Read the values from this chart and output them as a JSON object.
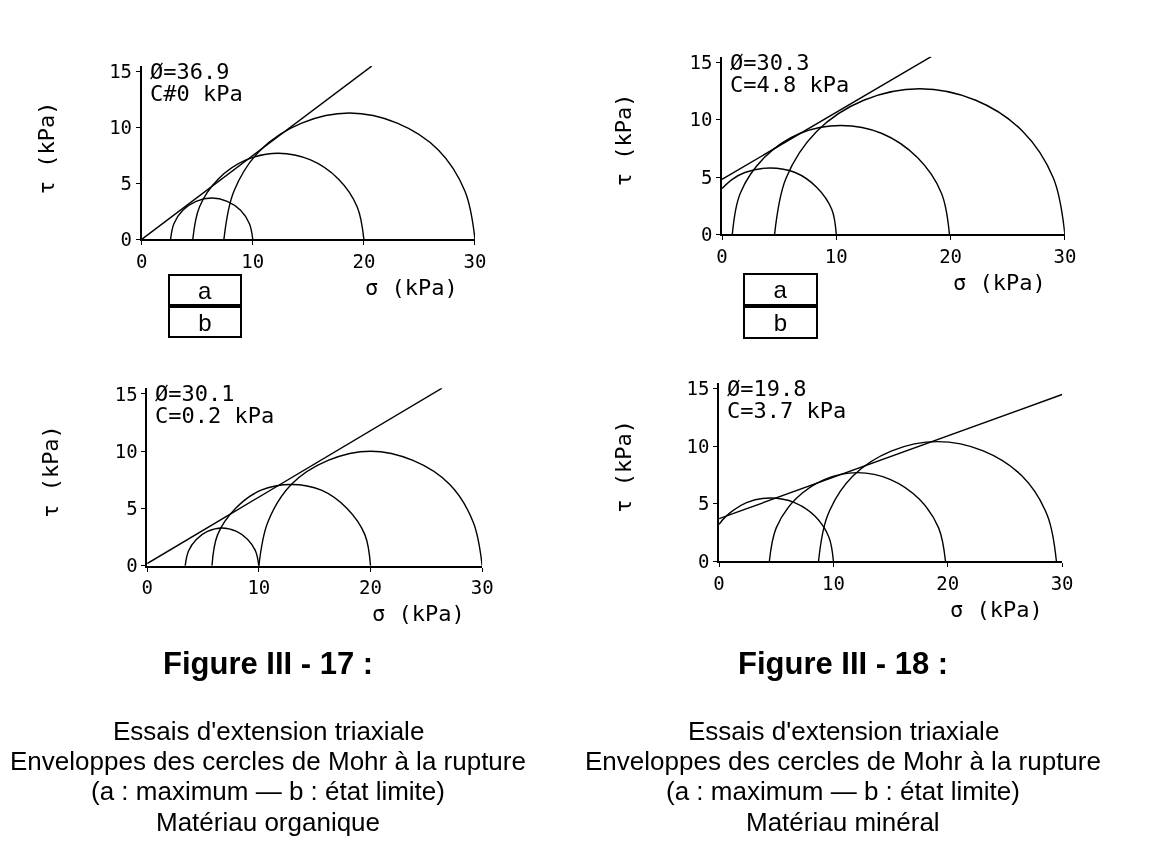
{
  "chart_data": [
    {
      "type": "line",
      "xlabel": "σ (kPa)",
      "ylabel": "τ (kPa)",
      "annotations": [
        "Ø=36.9",
        "C#0 kPa"
      ],
      "xlim": [
        0,
        30
      ],
      "xticks": [
        0,
        10,
        20,
        30
      ],
      "ylim": [
        0,
        15.5
      ],
      "yticks": [
        0,
        5,
        10,
        15
      ],
      "series": [
        {
          "color": "#000000",
          "x": [
            2.6,
            2.9,
            3.7,
            4.9,
            6.3,
            7.7,
            8.9,
            9.7,
            10.0
          ],
          "values": [
            0,
            1.4,
            2.6,
            3.4,
            3.7,
            3.4,
            2.6,
            1.4,
            0
          ]
        },
        {
          "color": "#000000",
          "x": [
            4.6,
            5.2,
            6.9,
            9.4,
            12.3,
            15.2,
            17.7,
            19.4,
            20.0
          ],
          "values": [
            0,
            2.9,
            5.4,
            7.1,
            7.7,
            7.1,
            5.4,
            2.9,
            0
          ]
        },
        {
          "color": "#000000",
          "x": [
            7.4,
            8.3,
            10.7,
            14.4,
            18.7,
            23.0,
            26.7,
            29.1,
            30.0
          ],
          "values": [
            0,
            4.3,
            8.0,
            10.4,
            11.3,
            10.4,
            8.0,
            4.3,
            0
          ]
        },
        {
          "color": "#000000",
          "x": [
            0,
            20.7
          ],
          "values": [
            0,
            15.5
          ]
        }
      ]
    },
    {
      "type": "other",
      "annotations": [
        "a",
        "b"
      ]
    },
    {
      "type": "line",
      "xlabel": "σ (kPa)",
      "ylabel": "τ (kPa)",
      "annotations": [
        "Ø=30.1",
        "C=0.2 kPa"
      ],
      "xlim": [
        0,
        30
      ],
      "xticks": [
        0,
        10,
        20,
        30
      ],
      "ylim": [
        0,
        15.5
      ],
      "yticks": [
        0,
        5,
        10,
        15
      ],
      "series": [
        {
          "color": "#000000",
          "x": [
            3.4,
            3.7,
            4.4,
            5.4,
            6.7,
            8.0,
            9.0,
            9.7,
            10.0
          ],
          "values": [
            0,
            1.3,
            2.3,
            3.0,
            3.3,
            3.0,
            2.3,
            1.3,
            0
          ]
        },
        {
          "color": "#000000",
          "x": [
            5.8,
            6.3,
            7.9,
            10.2,
            12.9,
            15.6,
            17.9,
            19.5,
            20.0
          ],
          "values": [
            0,
            2.7,
            5.0,
            6.6,
            7.1,
            6.6,
            5.0,
            2.7,
            0
          ]
        },
        {
          "color": "#000000",
          "x": [
            10.0,
            10.8,
            12.9,
            16.2,
            20.0,
            23.8,
            27.1,
            29.2,
            30.0
          ],
          "values": [
            0,
            3.8,
            7.1,
            9.2,
            10.0,
            9.2,
            7.1,
            3.8,
            0
          ]
        },
        {
          "color": "#000000",
          "x": [
            0,
            26.4
          ],
          "values": [
            0.2,
            15.5
          ]
        }
      ]
    },
    {
      "type": "other",
      "title": "Figure III - 17 :",
      "annotations": [
        "Essais d'extension triaxiale",
        "Enveloppes des cercles de Mohr à la rupture",
        "(a : maximum — b : état limite)",
        "Matériau organique"
      ]
    },
    {
      "type": "line",
      "xlabel": "σ (kPa)",
      "ylabel": "τ (kPa)",
      "annotations": [
        "Ø=30.3",
        "C=4.8 kPa"
      ],
      "xlim": [
        0,
        30
      ],
      "xticks": [
        0,
        10,
        20,
        30
      ],
      "ylim": [
        0,
        15.5
      ],
      "yticks": [
        0,
        5,
        10,
        15
      ],
      "series": [
        {
          "color": "#000000",
          "x": [
            0,
            0.9,
            2.0,
            4.2,
            6.4,
            8.3,
            9.6,
            10.0
          ],
          "values": [
            4.0,
            4.8,
            5.4,
            5.8,
            5.4,
            4.1,
            2.2,
            0
          ]
        },
        {
          "color": "#000000",
          "x": [
            0.9,
            1.6,
            3.7,
            6.8,
            10.4,
            14.0,
            17.1,
            19.2,
            19.9
          ],
          "values": [
            0,
            3.6,
            6.7,
            8.8,
            9.5,
            8.8,
            6.7,
            3.6,
            0
          ]
        },
        {
          "color": "#000000",
          "x": [
            4.6,
            5.6,
            8.3,
            12.4,
            17.3,
            22.2,
            26.3,
            29.0,
            30.0
          ],
          "values": [
            0,
            4.9,
            9.0,
            11.7,
            12.7,
            11.7,
            9.0,
            4.9,
            0
          ]
        },
        {
          "color": "#000000",
          "x": [
            0,
            18.3
          ],
          "values": [
            4.8,
            15.5
          ]
        }
      ]
    },
    {
      "type": "other",
      "annotations": [
        "a",
        "b"
      ]
    },
    {
      "type": "line",
      "xlabel": "σ (kPa)",
      "ylabel": "τ (kPa)",
      "annotations": [
        "Ø=19.8",
        "C=3.7 kPa"
      ],
      "xlim": [
        0,
        30
      ],
      "xticks": [
        0,
        10,
        20,
        30
      ],
      "ylim": [
        0,
        15.5
      ],
      "yticks": [
        0,
        5,
        10,
        15
      ],
      "series": [
        {
          "color": "#000000",
          "x": [
            0,
            0.6,
            2.4,
            4.5,
            6.6,
            8.4,
            9.6,
            10.0
          ],
          "values": [
            3.2,
            3.9,
            5.1,
            5.5,
            5.1,
            3.9,
            2.1,
            0
          ]
        },
        {
          "color": "#000000",
          "x": [
            4.4,
            5.0,
            6.7,
            9.2,
            12.1,
            15.0,
            17.5,
            19.2,
            19.8
          ],
          "values": [
            0,
            2.9,
            5.4,
            7.1,
            7.7,
            7.1,
            5.4,
            2.9,
            0
          ]
        },
        {
          "color": "#000000",
          "x": [
            8.7,
            9.5,
            11.7,
            15.1,
            19.1,
            23.1,
            26.5,
            28.7,
            29.5
          ],
          "values": [
            0,
            4.0,
            7.4,
            9.6,
            10.4,
            9.6,
            7.4,
            4.0,
            0
          ]
        },
        {
          "color": "#000000",
          "x": [
            0,
            30
          ],
          "values": [
            3.7,
            14.5
          ]
        }
      ]
    },
    {
      "type": "other",
      "title": "Figure III - 18 :",
      "annotations": [
        "Essais d'extension triaxiale",
        "Enveloppes des cercles de Mohr à la rupture",
        "(a : maximum — b : état limite)",
        "Matériau minéral"
      ]
    }
  ]
}
